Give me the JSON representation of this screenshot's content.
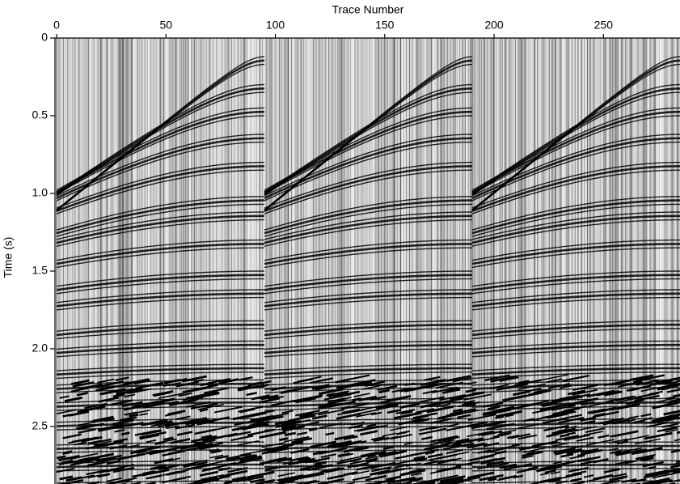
{
  "chart_data": {
    "type": "seismic",
    "xlabel": "Trace Number",
    "ylabel": "Time (s)",
    "xlim": [
      0,
      285
    ],
    "xticks": [
      0,
      50,
      100,
      150,
      200,
      250
    ],
    "ylim": [
      0,
      2.87
    ],
    "yticks": [
      0,
      0.5,
      {
        "value": 1,
        "label": "1.0"
      },
      1.5,
      {
        "value": 2,
        "label": "2.0"
      },
      2.5
    ],
    "y_reversed": true,
    "x_axis_position": "top"
  }
}
